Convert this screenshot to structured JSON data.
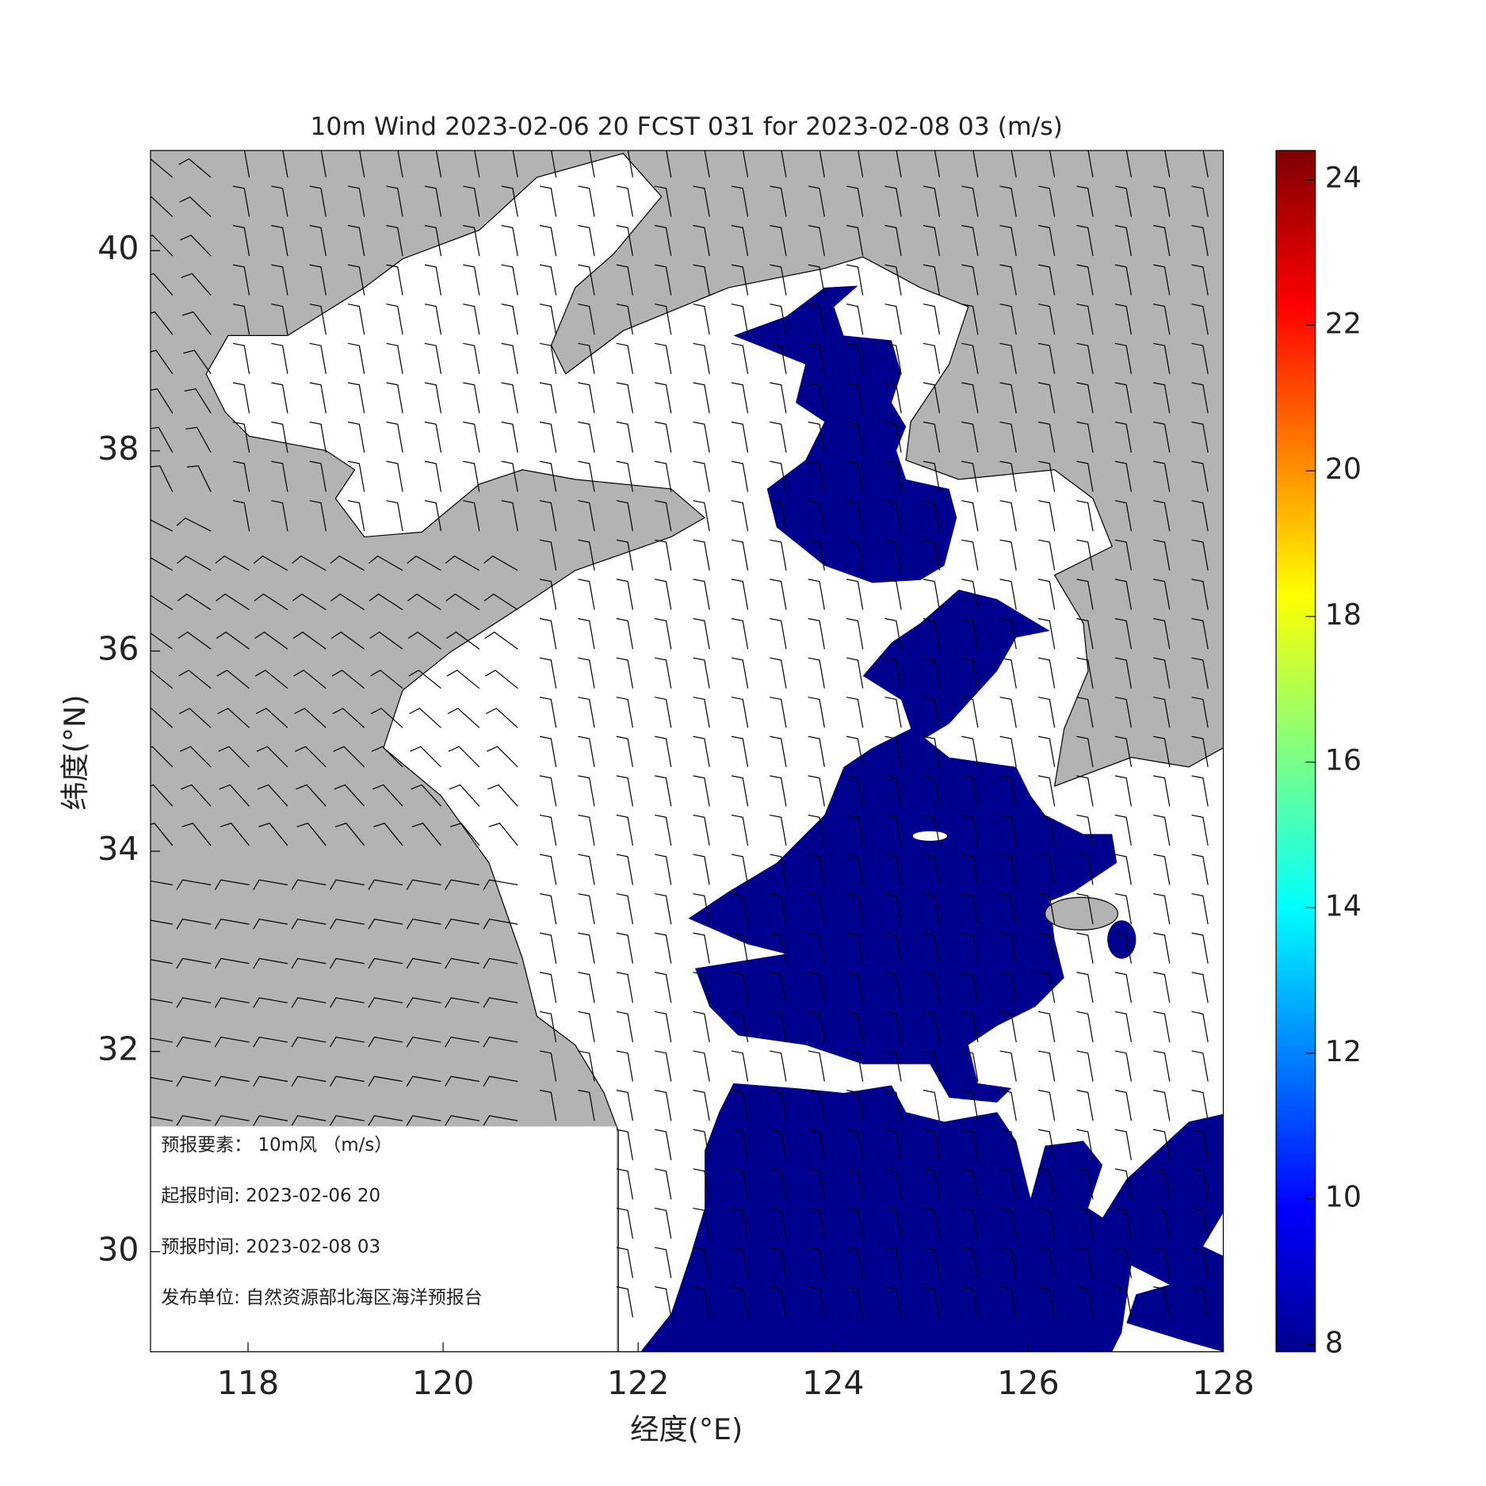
{
  "title": "10m Wind 2023-02-06 20 FCST 031 for 2023-02-08 03 (m/s)",
  "xlabel": "经度(°E)",
  "ylabel": "纬度(°N)",
  "xlim": [
    117,
    128
  ],
  "ylim": [
    29,
    41
  ],
  "xticks": [
    118,
    120,
    122,
    124,
    126,
    128
  ],
  "yticks": [
    30,
    32,
    34,
    36,
    38,
    40
  ],
  "colorbar": {
    "lim": [
      7.9,
      24.4
    ],
    "ticks": [
      8,
      10,
      12,
      14,
      16,
      18,
      20,
      22,
      24
    ]
  },
  "info": [
    "预报要素：  10m风 （m/s）",
    "起报时间: 2023-02-06 20",
    "预报时间: 2023-02-08 03",
    "发布单位:  自然资源部北海区海洋预报台"
  ]
}
